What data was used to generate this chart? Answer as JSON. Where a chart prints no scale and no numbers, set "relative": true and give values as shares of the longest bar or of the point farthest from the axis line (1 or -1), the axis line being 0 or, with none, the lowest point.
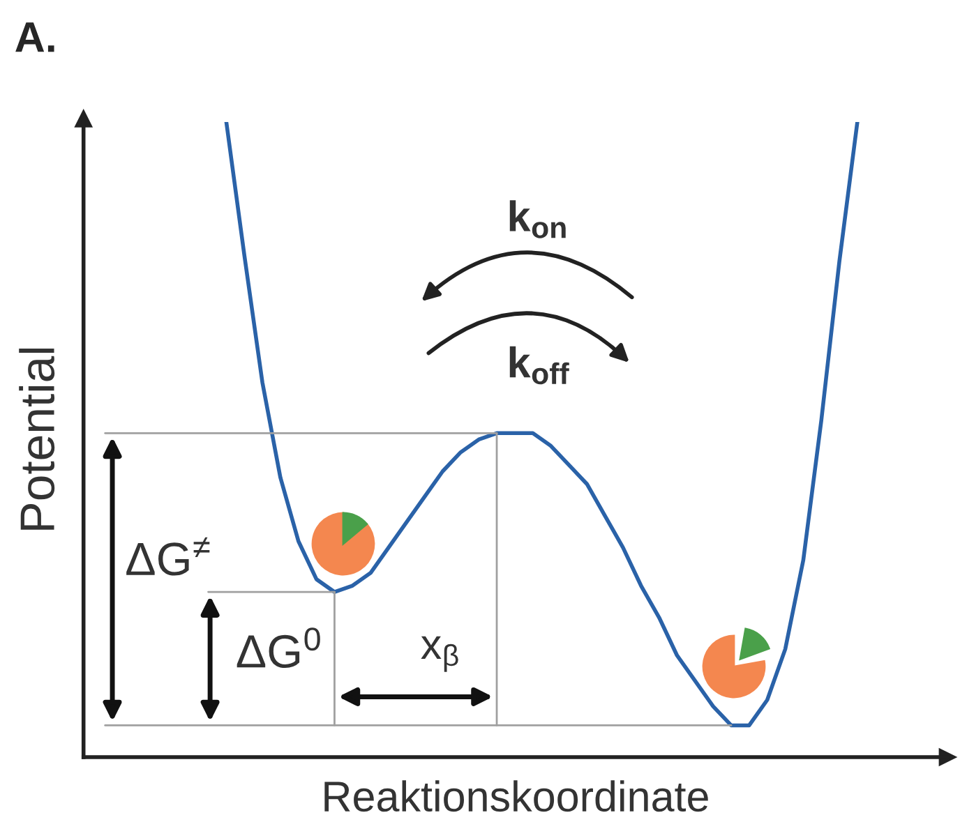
{
  "chart_data": {
    "type": "line",
    "relative": true,
    "title": "A.",
    "xlabel": "Reaktionskoordinate",
    "ylabel": "Potential",
    "categories": [
      null,
      null,
      null,
      null,
      null,
      null,
      null,
      null,
      null,
      null,
      null,
      null,
      null,
      null,
      null,
      null,
      null,
      null,
      null,
      null,
      null,
      null,
      null,
      null,
      null,
      null,
      null,
      null,
      null,
      null,
      null,
      null,
      null,
      null,
      null,
      null
    ],
    "series": [
      {
        "color": "#2a62a8",
        "values": [
          1.0,
          0.79,
          0.59,
          0.44,
          0.34,
          0.28,
          0.26,
          0.27,
          0.29,
          0.33,
          0.37,
          0.41,
          0.45,
          0.48,
          0.5,
          0.51,
          0.51,
          0.51,
          0.49,
          0.46,
          0.43,
          0.38,
          0.33,
          0.27,
          0.22,
          0.16,
          0.12,
          0.08,
          0.05,
          0.05,
          0.09,
          0.17,
          0.31,
          0.53,
          0.78,
          1.0
        ]
      }
    ],
    "ref_lines": [
      {
        "axis": "y",
        "value": 0.51,
        "color": "#a0a0a0"
      },
      {
        "axis": "y",
        "value": 0.26,
        "color": "#a0a0a0"
      },
      {
        "axis": "y",
        "value": 0.05,
        "color": "#a0a0a0"
      }
    ],
    "annotations": [
      "ΔG$^{≠}$",
      "ΔG$^{0}$",
      "x$_{β}$",
      "k$_{on}$",
      "k$_{off}$"
    ],
    "marker": "none",
    "line_style": "solid"
  }
}
